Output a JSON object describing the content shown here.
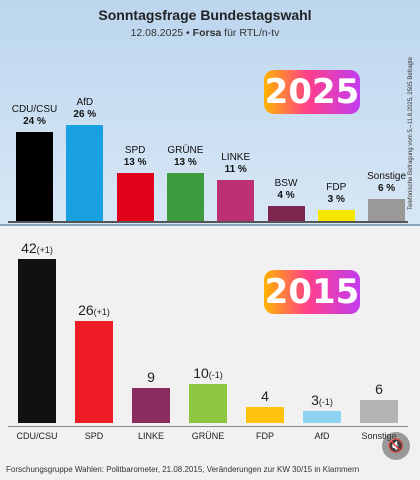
{
  "chart_data": [
    {
      "type": "bar",
      "title": "Sonntagsfrage Bundestagswahl",
      "subtitle_date": "12.08.2025",
      "subtitle_source": "Forsa",
      "subtitle_rest": "für RTL/n-tv",
      "side_note": "Telefonische Befragung vom 5.–11.8.2025, 2505 Befragte",
      "year_badge": "2025",
      "categories": [
        "CDU/CSU",
        "AfD",
        "SPD",
        "GRÜNE",
        "LINKE",
        "BSW",
        "FDP",
        "Sonstige"
      ],
      "values": [
        24,
        26,
        13,
        13,
        11,
        4,
        3,
        6
      ],
      "value_labels": [
        "24 %",
        "26 %",
        "13 %",
        "13 %",
        "11 %",
        "4 %",
        "3 %",
        "6 %"
      ],
      "colors": [
        "#000000",
        "#19a0e0",
        "#e3001b",
        "#3e9b3e",
        "#be3075",
        "#7d254f",
        "#f3e600",
        "#999999"
      ],
      "ylim": [
        0,
        30
      ]
    },
    {
      "type": "bar",
      "year_badge": "2015",
      "categories": [
        "CDU/CSU",
        "SPD",
        "LINKE",
        "GRÜNE",
        "FDP",
        "AfD",
        "Sonstige"
      ],
      "values": [
        42,
        26,
        9,
        10,
        4,
        3,
        6
      ],
      "changes": [
        "(+1)",
        "(+1)",
        "",
        "(-1)",
        "",
        "(-1)",
        ""
      ],
      "colors": [
        "#111111",
        "#ee1c25",
        "#8b2c5e",
        "#8dc63f",
        "#ffc20e",
        "#8fd3f2",
        "#b3b3b3"
      ],
      "ylim": [
        0,
        45
      ],
      "footer": "Forschungsgruppe Wahlen: Politbarometer, 21.08.2015, Veränderungen zur KW 30/15 in Klammern"
    }
  ],
  "ui": {
    "mute_icon": "🔇"
  }
}
